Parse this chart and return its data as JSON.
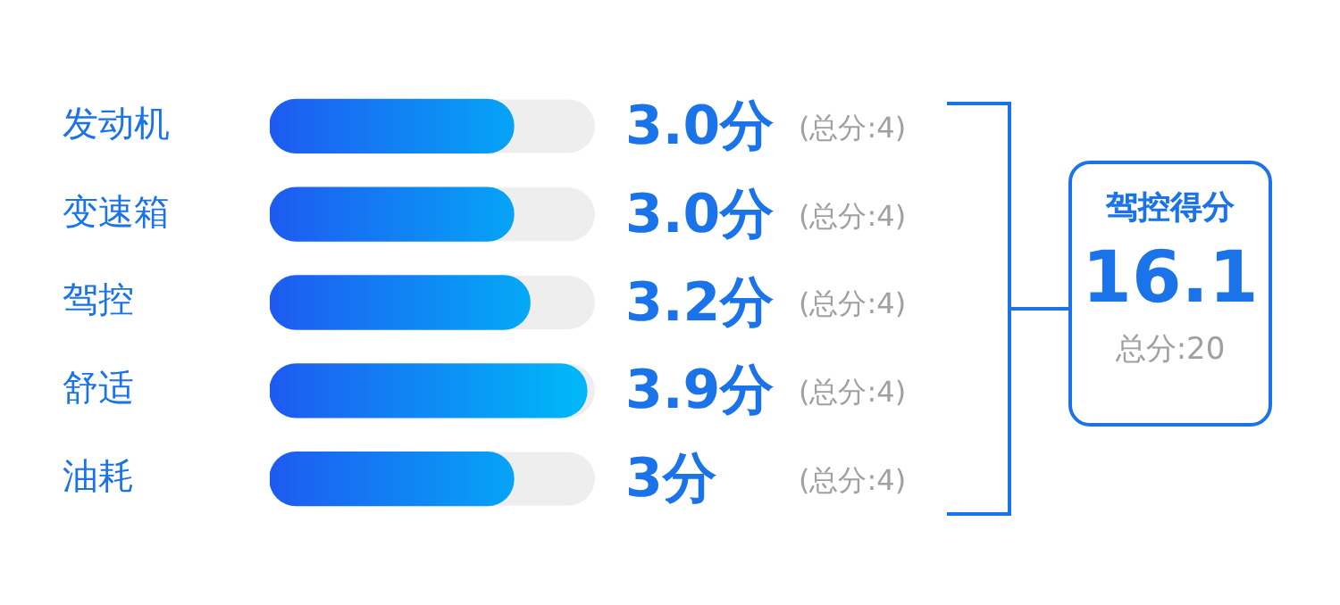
{
  "chart_data": {
    "type": "bar",
    "orientation": "horizontal",
    "categories": [
      "发动机",
      "变速箱",
      "驾控",
      "舒适",
      "油耗"
    ],
    "values": [
      3.0,
      3.0,
      3.2,
      3.9,
      3
    ],
    "value_labels": [
      "3.0分",
      "3.0分",
      "3.2分",
      "3.9分",
      "3分"
    ],
    "color": "#1e5af0",
    "xlim": [
      0,
      4
    ],
    "tick_labels": "y",
    "annotations": [
      "(总分:4)",
      "(总分:4)",
      "(总分:4)",
      "(总分:4)",
      "(总分:4)",
      "驾控得分",
      "16.1",
      "总分:20"
    ]
  }
}
